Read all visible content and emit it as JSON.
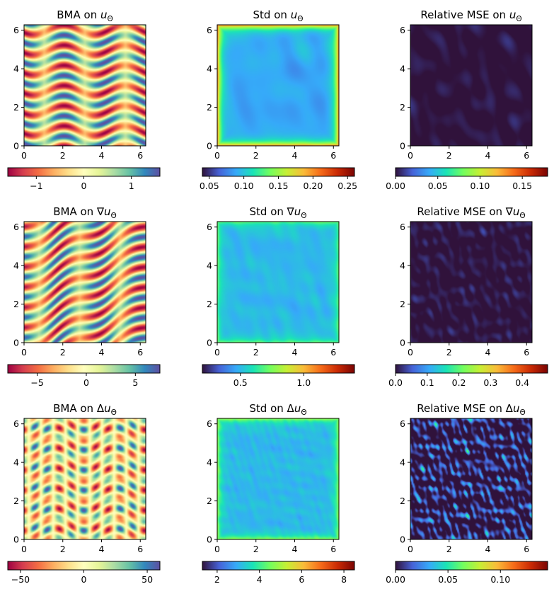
{
  "chart_data": [
    {
      "type": "heatmap",
      "quantity": "BMA",
      "target": "u",
      "title": "BMA on u_Θ",
      "title_prefix": "BMA on ",
      "title_op": "",
      "xlim": [
        0,
        6.283
      ],
      "ylim": [
        0,
        6.283
      ],
      "xticks": [
        "0",
        "2",
        "4",
        "6"
      ],
      "yticks": [
        "0",
        "2",
        "4",
        "6"
      ],
      "colormap": "Spectral",
      "colorbar_range": [
        -1.6,
        1.6
      ],
      "colorbar_ticks": [
        {
          "value": -1,
          "label": "−1"
        },
        {
          "value": 0,
          "label": "0"
        },
        {
          "value": 1,
          "label": "1"
        }
      ]
    },
    {
      "type": "heatmap",
      "quantity": "Std",
      "target": "u",
      "title": "Std on u_Θ",
      "title_prefix": "Std on ",
      "title_op": "",
      "xlim": [
        0,
        6.283
      ],
      "ylim": [
        0,
        6.283
      ],
      "xticks": [
        "0",
        "2",
        "4",
        "6"
      ],
      "yticks": [
        "0",
        "2",
        "4",
        "6"
      ],
      "colormap": "turbo",
      "colorbar_range": [
        0.04,
        0.26
      ],
      "colorbar_ticks": [
        {
          "value": 0.05,
          "label": "0.05"
        },
        {
          "value": 0.1,
          "label": "0.10"
        },
        {
          "value": 0.15,
          "label": "0.15"
        },
        {
          "value": 0.2,
          "label": "0.20"
        },
        {
          "value": 0.25,
          "label": "0.25"
        }
      ]
    },
    {
      "type": "heatmap",
      "quantity": "Relative MSE",
      "target": "u",
      "title": "Relative MSE on u_Θ",
      "title_prefix": "Relative MSE on ",
      "title_op": "",
      "xlim": [
        0,
        6.283
      ],
      "ylim": [
        0,
        6.283
      ],
      "xticks": [
        "0",
        "2",
        "4",
        "6"
      ],
      "yticks": [
        "0",
        "2",
        "4",
        "6"
      ],
      "colormap": "turbo",
      "colorbar_range": [
        0,
        0.18
      ],
      "colorbar_ticks": [
        {
          "value": 0,
          "label": "0.00"
        },
        {
          "value": 0.05,
          "label": "0.05"
        },
        {
          "value": 0.1,
          "label": "0.10"
        },
        {
          "value": 0.15,
          "label": "0.15"
        }
      ]
    },
    {
      "type": "heatmap",
      "quantity": "BMA",
      "target": "grad u",
      "title": "BMA on ∇u_Θ",
      "title_prefix": "BMA on ",
      "title_op": "∇",
      "xlim": [
        0,
        6.283
      ],
      "ylim": [
        0,
        6.283
      ],
      "xticks": [
        "0",
        "2",
        "4",
        "6"
      ],
      "yticks": [
        "0",
        "2",
        "4",
        "6"
      ],
      "colormap": "Spectral",
      "colorbar_range": [
        -8,
        7.5
      ],
      "colorbar_ticks": [
        {
          "value": -5,
          "label": "−5"
        },
        {
          "value": 0,
          "label": "0"
        },
        {
          "value": 5,
          "label": "5"
        }
      ]
    },
    {
      "type": "heatmap",
      "quantity": "Std",
      "target": "grad u",
      "title": "Std on ∇u_Θ",
      "title_prefix": "Std on ",
      "title_op": "∇",
      "xlim": [
        0,
        6.283
      ],
      "ylim": [
        0,
        6.283
      ],
      "xticks": [
        "0",
        "2",
        "4",
        "6"
      ],
      "yticks": [
        "0",
        "2",
        "4",
        "6"
      ],
      "colormap": "turbo",
      "colorbar_range": [
        0.2,
        1.4
      ],
      "colorbar_ticks": [
        {
          "value": 0.5,
          "label": "0.5"
        },
        {
          "value": 1.0,
          "label": "1.0"
        }
      ]
    },
    {
      "type": "heatmap",
      "quantity": "Relative MSE",
      "target": "grad u",
      "title": "Relative MSE on ∇u_Θ",
      "title_prefix": "Relative MSE on ",
      "title_op": "∇",
      "xlim": [
        0,
        6.283
      ],
      "ylim": [
        0,
        6.283
      ],
      "xticks": [
        "0",
        "2",
        "4",
        "6"
      ],
      "yticks": [
        "0",
        "2",
        "4",
        "6"
      ],
      "colormap": "turbo",
      "colorbar_range": [
        0,
        0.48
      ],
      "colorbar_ticks": [
        {
          "value": 0,
          "label": "0.0"
        },
        {
          "value": 0.1,
          "label": "0.1"
        },
        {
          "value": 0.2,
          "label": "0.2"
        },
        {
          "value": 0.3,
          "label": "0.3"
        },
        {
          "value": 0.4,
          "label": "0.4"
        }
      ]
    },
    {
      "type": "heatmap",
      "quantity": "BMA",
      "target": "laplacian u",
      "title": "BMA on Δu_Θ",
      "title_prefix": "BMA on ",
      "title_op": "Δ",
      "xlim": [
        0,
        6.283
      ],
      "ylim": [
        0,
        6.283
      ],
      "xticks": [
        "0",
        "2",
        "4",
        "6"
      ],
      "yticks": [
        "0",
        "2",
        "4",
        "6"
      ],
      "colormap": "Spectral",
      "colorbar_range": [
        -60,
        60
      ],
      "colorbar_ticks": [
        {
          "value": -50,
          "label": "−50"
        },
        {
          "value": 0,
          "label": "0"
        },
        {
          "value": 50,
          "label": "50"
        }
      ]
    },
    {
      "type": "heatmap",
      "quantity": "Std",
      "target": "laplacian u",
      "title": "Std on Δu_Θ",
      "title_prefix": "Std on ",
      "title_op": "Δ",
      "xlim": [
        0,
        6.283
      ],
      "ylim": [
        0,
        6.283
      ],
      "xticks": [
        "0",
        "2",
        "4",
        "6"
      ],
      "yticks": [
        "0",
        "2",
        "4",
        "6"
      ],
      "colormap": "turbo",
      "colorbar_range": [
        1.3,
        8.5
      ],
      "colorbar_ticks": [
        {
          "value": 2,
          "label": "2"
        },
        {
          "value": 4,
          "label": "4"
        },
        {
          "value": 6,
          "label": "6"
        },
        {
          "value": 8,
          "label": "8"
        }
      ]
    },
    {
      "type": "heatmap",
      "quantity": "Relative MSE",
      "target": "laplacian u",
      "title": "Relative MSE on Δu_Θ",
      "title_prefix": "Relative MSE on ",
      "title_op": "Δ",
      "xlim": [
        0,
        6.283
      ],
      "ylim": [
        0,
        6.283
      ],
      "xticks": [
        "0",
        "2",
        "4",
        "6"
      ],
      "yticks": [
        "0",
        "2",
        "4",
        "6"
      ],
      "colormap": "turbo",
      "colorbar_range": [
        0,
        0.145
      ],
      "colorbar_ticks": [
        {
          "value": 0,
          "label": "0.00"
        },
        {
          "value": 0.05,
          "label": "0.05"
        },
        {
          "value": 0.1,
          "label": "0.10"
        }
      ]
    }
  ],
  "subscript": "Θ",
  "symbol": "u"
}
